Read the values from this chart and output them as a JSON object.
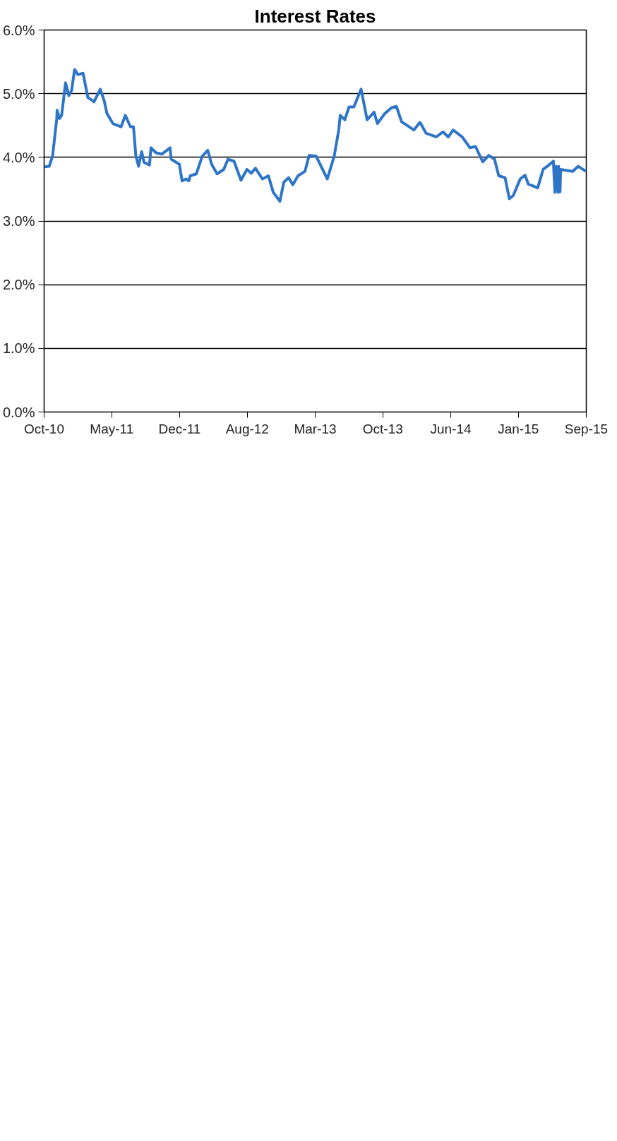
{
  "chart_data": {
    "type": "line",
    "title": "Interest Rates",
    "x": [
      "2010-10-02",
      "2010-10-18",
      "2010-10-29",
      "2010-11-12",
      "2010-11-13",
      "2010-11-21",
      "2010-11-28",
      "2010-12-11",
      "2010-12-22",
      "2010-12-31",
      "2011-01-10",
      "2011-01-21",
      "2011-02-07",
      "2011-02-23",
      "2011-03-11",
      "2011-03-15",
      "2011-04-05",
      "2011-04-18",
      "2011-04-27",
      "2011-05-17",
      "2011-06-13",
      "2011-06-27",
      "2011-07-14",
      "2011-07-24",
      "2011-08-01",
      "2011-08-10",
      "2011-08-20",
      "2011-08-28",
      "2011-09-15",
      "2011-09-20",
      "2011-10-07",
      "2011-10-26",
      "2011-11-22",
      "2011-11-26",
      "2011-12-23",
      "2012-01-01",
      "2012-01-14",
      "2012-01-23",
      "2012-01-28",
      "2012-02-17",
      "2012-03-08",
      "2012-03-26",
      "2012-04-08",
      "2012-04-26",
      "2012-05-18",
      "2012-06-01",
      "2012-06-21",
      "2012-07-14",
      "2012-08-03",
      "2012-08-17",
      "2012-08-31",
      "2012-09-23",
      "2012-10-13",
      "2012-10-29",
      "2012-11-20",
      "2012-12-03",
      "2012-12-19",
      "2013-01-02",
      "2013-01-19",
      "2013-02-11",
      "2013-02-25",
      "2013-03-20",
      "2013-04-26",
      "2013-05-19",
      "2013-06-03",
      "2013-06-08",
      "2013-06-23",
      "2013-07-07",
      "2013-07-23",
      "2013-08-16",
      "2013-09-05",
      "2013-09-28",
      "2013-10-09",
      "2013-11-03",
      "2013-11-25",
      "2013-12-11",
      "2013-12-28",
      "2014-02-07",
      "2014-02-27",
      "2014-03-19",
      "2014-04-22",
      "2014-05-14",
      "2014-06-01",
      "2014-06-17",
      "2014-07-17",
      "2014-08-12",
      "2014-08-30",
      "2014-09-23",
      "2014-10-13",
      "2014-11-01",
      "2014-11-15",
      "2014-12-06",
      "2014-12-20",
      "2015-01-02",
      "2015-01-25",
      "2015-02-10",
      "2015-02-21",
      "2015-03-24",
      "2015-04-11",
      "2015-04-25",
      "2015-05-15",
      "2015-05-20",
      "2015-05-23",
      "2015-05-30",
      "2015-06-01",
      "2015-06-06",
      "2015-06-08",
      "2015-07-18",
      "2015-08-05",
      "2015-08-31"
    ],
    "series": [
      {
        "color": "#2e75c8",
        "values": [
          3.85,
          3.86,
          4.02,
          4.61,
          4.74,
          4.61,
          4.66,
          5.17,
          4.97,
          5.05,
          5.38,
          5.3,
          5.32,
          4.94,
          4.89,
          4.87,
          5.07,
          4.89,
          4.69,
          4.53,
          4.48,
          4.66,
          4.48,
          4.48,
          4.02,
          3.86,
          4.09,
          3.92,
          3.88,
          4.15,
          4.07,
          4.05,
          4.15,
          3.97,
          3.89,
          3.63,
          3.66,
          3.63,
          3.71,
          3.74,
          4.02,
          4.11,
          3.89,
          3.74,
          3.81,
          3.97,
          3.94,
          3.64,
          3.81,
          3.75,
          3.83,
          3.66,
          3.71,
          3.45,
          3.31,
          3.61,
          3.68,
          3.57,
          3.71,
          3.78,
          4.03,
          4.02,
          3.66,
          4.02,
          4.43,
          4.66,
          4.59,
          4.79,
          4.79,
          5.07,
          4.59,
          4.71,
          4.53,
          4.69,
          4.78,
          4.8,
          4.56,
          4.43,
          4.55,
          4.38,
          4.32,
          4.4,
          4.32,
          4.43,
          4.32,
          4.15,
          4.17,
          3.93,
          4.03,
          3.97,
          3.71,
          3.68,
          3.35,
          3.4,
          3.66,
          3.72,
          3.58,
          3.52,
          3.81,
          3.86,
          3.94,
          3.45,
          3.86,
          3.45,
          3.86,
          3.46,
          3.81,
          3.78,
          3.86,
          3.78
        ]
      }
    ],
    "xlim": [
      "2010-10-01",
      "2015-09-01"
    ],
    "xticks": [
      {
        "value": "2010-10-01",
        "label": "Oct-10"
      },
      {
        "value": "2011-05-13",
        "label": "May-11"
      },
      {
        "value": "2011-12-24",
        "label": "Dec-11"
      },
      {
        "value": "2012-08-04",
        "label": "Aug-12"
      },
      {
        "value": "2013-03-17",
        "label": "Mar-13"
      },
      {
        "value": "2013-10-27",
        "label": "Oct-13"
      },
      {
        "value": "2014-06-09",
        "label": "Jun-14"
      },
      {
        "value": "2015-01-19",
        "label": "Jan-15"
      },
      {
        "value": "2015-09-01",
        "label": "Sep-15"
      }
    ],
    "ylim": [
      0,
      6
    ],
    "yticks": [
      {
        "value": 0,
        "label": "0.0%"
      },
      {
        "value": 1,
        "label": "1.0%"
      },
      {
        "value": 2,
        "label": "2.0%"
      },
      {
        "value": 3,
        "label": "3.0%"
      },
      {
        "value": 4,
        "label": "4.0%"
      },
      {
        "value": 5,
        "label": "5.0%"
      },
      {
        "value": 6,
        "label": "6.0%"
      }
    ],
    "grid": "y",
    "marker": "none",
    "line_style": "solid"
  }
}
